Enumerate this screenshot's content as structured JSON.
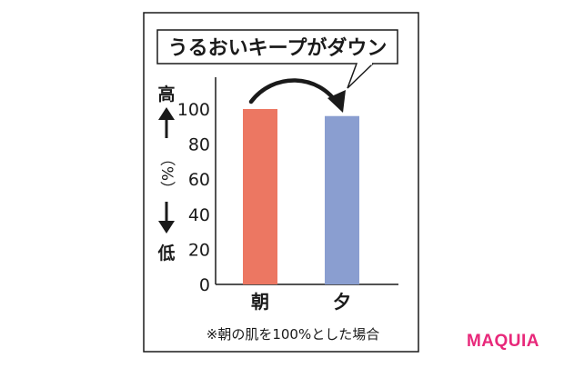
{
  "chart_data": {
    "type": "bar",
    "title": "うるおいキープがダウン",
    "categories": [
      "朝",
      "夕"
    ],
    "series": [
      {
        "values": [
          100,
          96
        ]
      }
    ],
    "colors": [
      "#ec7762",
      "#8a9ed0"
    ],
    "ylim": [
      0,
      100
    ],
    "yticks": [
      "100",
      "80",
      "60",
      "40",
      "20",
      "0"
    ],
    "ylabel_high": "高",
    "ylabel_unit": "（%）",
    "ylabel_low": "低",
    "note": "※朝の肌を100%とした場合",
    "grid": false
  },
  "brand": {
    "logo_text": "MAQUIA"
  }
}
